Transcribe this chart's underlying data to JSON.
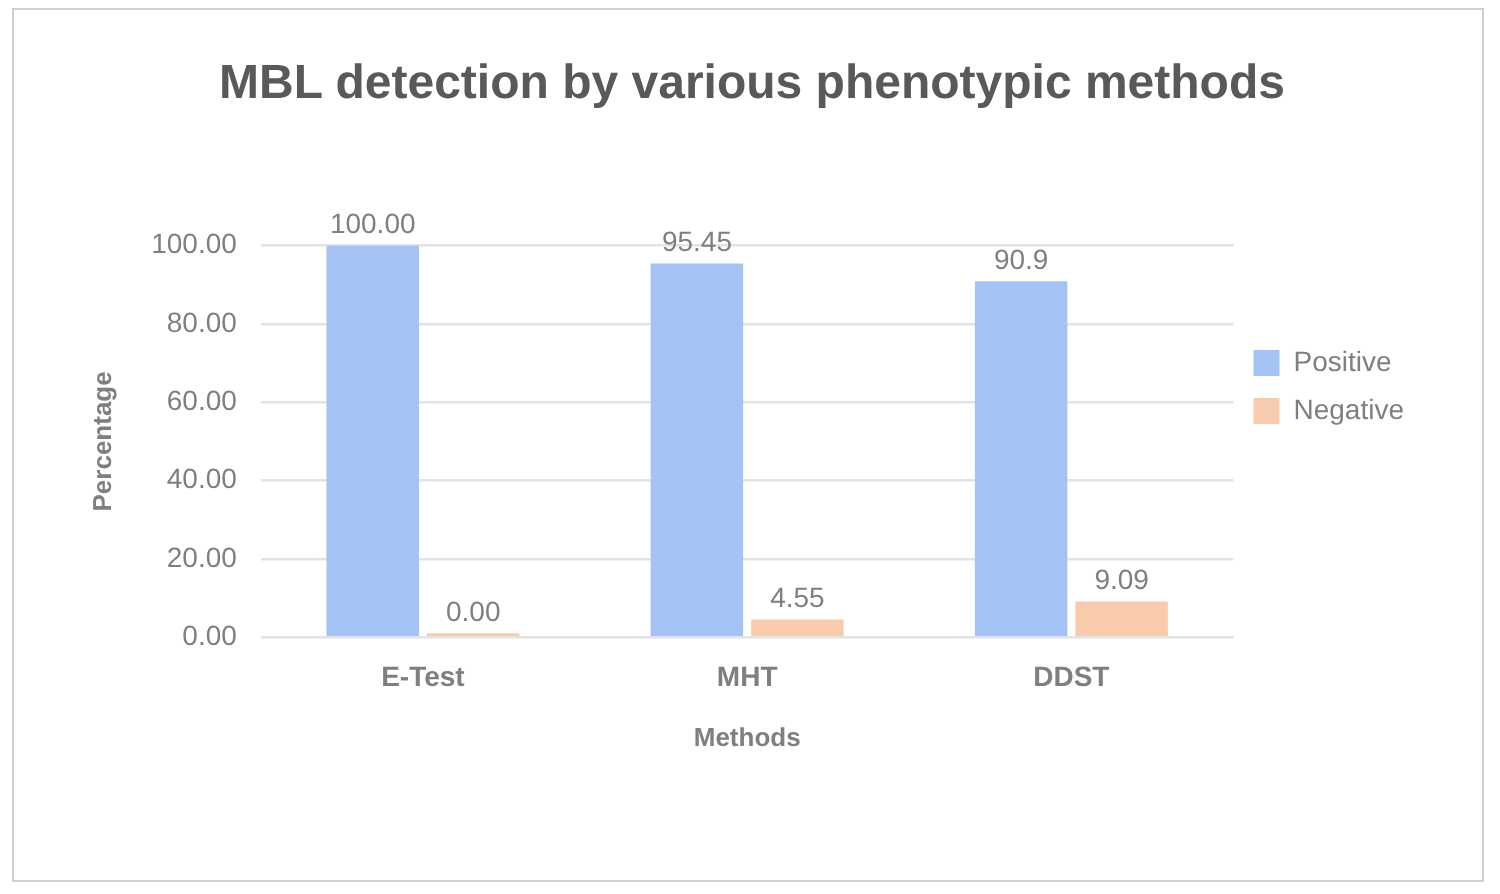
{
  "chart_data": {
    "type": "bar",
    "title": "MBL detection by various phenotypic methods",
    "xlabel": "Methods",
    "ylabel": "Percentage",
    "categories": [
      "E-Test",
      "MHT",
      "DDST"
    ],
    "series": [
      {
        "name": "Positive",
        "color": "#a4c2f4",
        "values": [
          100,
          95.45,
          90.9
        ],
        "value_labels": [
          "100.00",
          "95.45",
          "90.9"
        ]
      },
      {
        "name": "Negative",
        "color": "#f8cbad",
        "values": [
          0,
          4.55,
          9.09
        ],
        "value_labels": [
          "0.00",
          "4.55",
          "9.09"
        ]
      }
    ],
    "ylim": [
      0,
      100
    ],
    "yticks": [
      {
        "value": 0,
        "label": "0.00"
      },
      {
        "value": 20,
        "label": "20.00"
      },
      {
        "value": 40,
        "label": "40.00"
      },
      {
        "value": 60,
        "label": "60.00"
      },
      {
        "value": 80,
        "label": "80.00"
      },
      {
        "value": 100,
        "label": "100.00"
      }
    ],
    "grid": "y",
    "legend": "right"
  }
}
